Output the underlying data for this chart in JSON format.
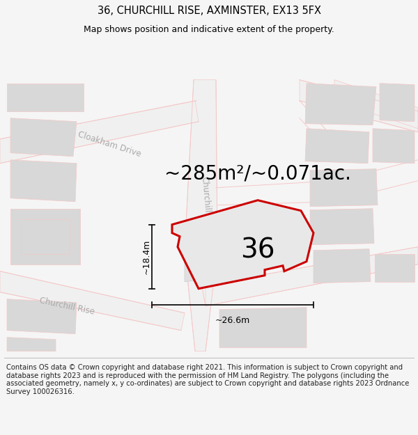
{
  "title_line1": "36, CHURCHILL RISE, AXMINSTER, EX13 5FX",
  "title_line2": "Map shows position and indicative extent of the property.",
  "area_text": "~285m²/~0.071ac.",
  "width_label": "~26.6m",
  "height_label": "~18.4m",
  "plot_number": "36",
  "footer_text": "Contains OS data © Crown copyright and database right 2021. This information is subject to Crown copyright and database rights 2023 and is reproduced with the permission of HM Land Registry. The polygons (including the associated geometry, namely x, y co-ordinates) are subject to Crown copyright and database rights 2023 Ordnance Survey 100026316.",
  "bg_color": "#f5f5f5",
  "map_bg": "#ffffff",
  "plot_fill": "#e8e8e8",
  "plot_outline": "#cc0000",
  "building_fill": "#d8d8d8",
  "road_color": "#f5c8c8",
  "road_fill": "#f8f8f8",
  "street_label_color": "#aaaaaa",
  "dim_line_color": "#111111",
  "title_fontsize": 10.5,
  "subtitle_fontsize": 9,
  "area_fontsize": 20,
  "number_fontsize": 28,
  "footer_fontsize": 7.2,
  "title_bold": false
}
